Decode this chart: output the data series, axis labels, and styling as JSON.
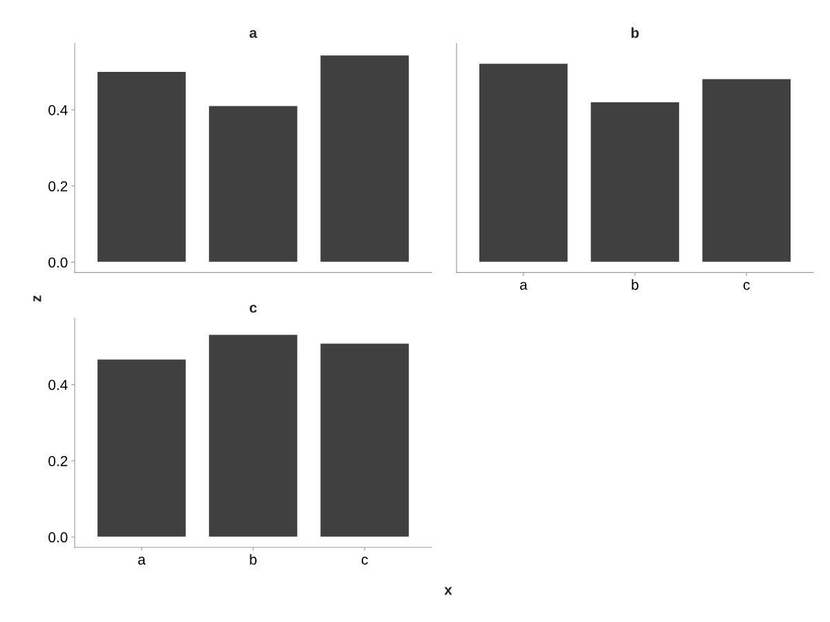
{
  "chart_data": [
    {
      "type": "bar",
      "title": "a",
      "ylabel": "z",
      "categories": [
        null,
        null,
        null
      ],
      "values": [
        0.501,
        0.411,
        0.544
      ],
      "color": "#404040",
      "ylim": [
        -0.027,
        0.574
      ],
      "yticks": [
        {
          "value": 0,
          "label": "0.0"
        },
        {
          "value": 0.2,
          "label": "0.2"
        },
        {
          "value": 0.4,
          "label": "0.4"
        }
      ],
      "tick_labels": "y"
    },
    {
      "type": "bar",
      "title": "b",
      "categories": [
        "a",
        "b",
        "c"
      ],
      "values": [
        0.522,
        0.421,
        0.482
      ],
      "color": "#404040",
      "ylim": [
        -0.027,
        0.574
      ],
      "tick_labels": "x"
    },
    {
      "type": "bar",
      "title": "c",
      "xlabel": "x",
      "categories": [
        "a",
        "b",
        "c"
      ],
      "values": [
        0.467,
        0.532,
        0.509
      ],
      "color": "#404040",
      "ylim": [
        -0.027,
        0.574
      ],
      "yticks": [
        {
          "value": 0,
          "label": "0.0"
        },
        {
          "value": 0.2,
          "label": "0.2"
        },
        {
          "value": 0.4,
          "label": "0.4"
        }
      ]
    }
  ]
}
